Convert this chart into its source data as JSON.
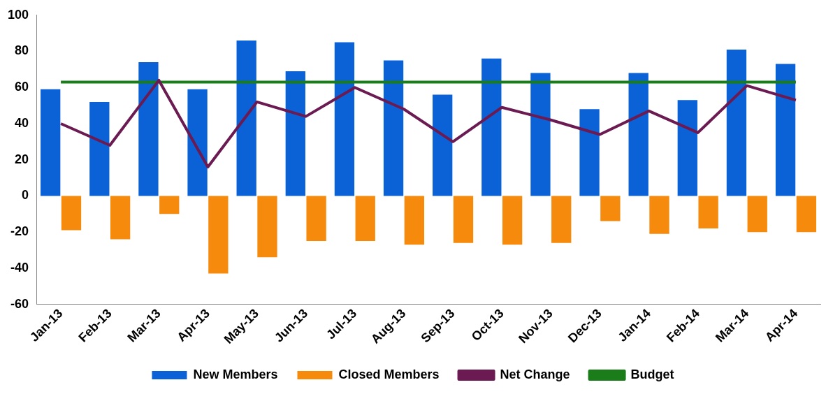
{
  "chart_data": {
    "type": "bar",
    "categories": [
      "Jan-13",
      "Feb-13",
      "Mar-13",
      "Apr-13",
      "May-13",
      "Jun-13",
      "Jul-13",
      "Aug-13",
      "Sep-13",
      "Oct-13",
      "Nov-13",
      "Dec-13",
      "Jan-14",
      "Feb-14",
      "Mar-14",
      "Apr-14"
    ],
    "series": [
      {
        "name": "New Members",
        "color": "#0a62d6",
        "values": [
          59,
          52,
          74,
          59,
          86,
          69,
          85,
          75,
          56,
          76,
          68,
          48,
          68,
          53,
          81,
          73
        ]
      },
      {
        "name": "Closed Members",
        "color": "#f58a0c",
        "values": [
          -19,
          -24,
          -10,
          -43,
          -34,
          -25,
          -25,
          -27,
          -26,
          -27,
          -26,
          -14,
          -21,
          -18,
          -20,
          -20
        ]
      },
      {
        "name": "Net Change",
        "type": "line",
        "color": "#6b1a52",
        "values": [
          40,
          28,
          64,
          16,
          52,
          44,
          60,
          48,
          30,
          49,
          42,
          34,
          47,
          35,
          61,
          53
        ]
      },
      {
        "name": "Budget",
        "type": "line",
        "color": "#1a7d1a",
        "values": [
          63,
          63,
          63,
          63,
          63,
          63,
          63,
          63,
          63,
          63,
          63,
          63,
          63,
          63,
          63,
          63
        ]
      }
    ],
    "ylim": [
      -60,
      100
    ],
    "yticks": [
      -60,
      -40,
      -20,
      0,
      20,
      40,
      60,
      80,
      100
    ],
    "grid": false,
    "legend": "bottom",
    "marker": "none",
    "line_style": "solid"
  }
}
